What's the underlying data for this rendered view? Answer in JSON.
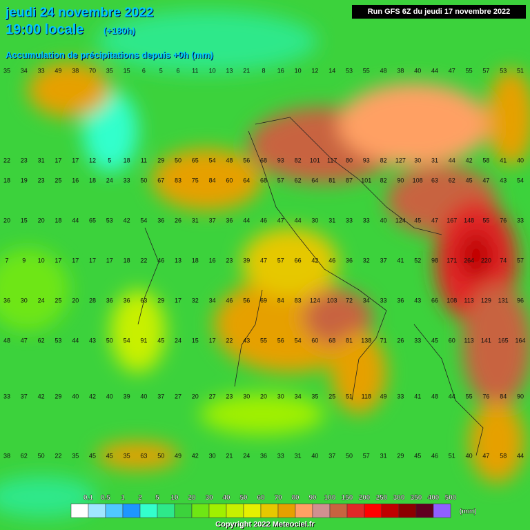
{
  "header": {
    "date": "jeudi 24 novembre 2022",
    "time": "19:00 locale",
    "lead": "(+180h)",
    "subtitle": "Accumulation de précipitations depuis +0h (mm)",
    "run": "Run GFS 6Z du jeudi 17 novembre 2022"
  },
  "legend": {
    "unit": "(mm)",
    "items": [
      {
        "label": "0.1",
        "color": "#ffffff"
      },
      {
        "label": "0.5",
        "color": "#a0e6ff"
      },
      {
        "label": "1",
        "color": "#50c8ff"
      },
      {
        "label": "2",
        "color": "#1e96ff"
      },
      {
        "label": "5",
        "color": "#33ffcc"
      },
      {
        "label": "10",
        "color": "#2ee88a"
      },
      {
        "label": "20",
        "color": "#3cd23c"
      },
      {
        "label": "30",
        "color": "#6ee614"
      },
      {
        "label": "40",
        "color": "#a0f000"
      },
      {
        "label": "50",
        "color": "#c8f000"
      },
      {
        "label": "60",
        "color": "#e6f000"
      },
      {
        "label": "70",
        "color": "#e6c800"
      },
      {
        "label": "80",
        "color": "#e6a000"
      },
      {
        "label": "90",
        "color": "#ffa064"
      },
      {
        "label": "100",
        "color": "#d09090"
      },
      {
        "label": "150",
        "color": "#c86440"
      },
      {
        "label": "200",
        "color": "#e02828"
      },
      {
        "label": "250",
        "color": "#ff0000"
      },
      {
        "label": "300",
        "color": "#c00000"
      },
      {
        "label": "350",
        "color": "#8c0000"
      },
      {
        "label": "400",
        "color": "#600020"
      },
      {
        "label": "500",
        "color": "#9060ff"
      }
    ]
  },
  "grid": {
    "rows": [
      [
        "35",
        "34",
        "33",
        "49",
        "38",
        "70",
        "35",
        "15",
        "6",
        "5",
        "6",
        "11",
        "10",
        "13",
        "21",
        "8",
        "16",
        "10",
        "12",
        "14",
        "53",
        "55",
        "48",
        "38",
        "40",
        "44",
        "47",
        "55",
        "57",
        "53",
        "51"
      ],
      [
        "22",
        "23",
        "31",
        "17",
        "17",
        "12",
        "5",
        "18",
        "11",
        "29",
        "50",
        "65",
        "54",
        "48",
        "56",
        "68",
        "93",
        "82",
        "101",
        "117",
        "80",
        "93",
        "82",
        "127",
        "30",
        "31",
        "44",
        "42",
        "58",
        "41",
        "40"
      ],
      [
        "18",
        "19",
        "23",
        "25",
        "16",
        "18",
        "24",
        "33",
        "50",
        "67",
        "83",
        "75",
        "84",
        "60",
        "64",
        "68",
        "57",
        "62",
        "64",
        "81",
        "87",
        "101",
        "82",
        "90",
        "108",
        "63",
        "62",
        "45",
        "47",
        "43",
        "54"
      ],
      [
        "20",
        "15",
        "20",
        "18",
        "44",
        "65",
        "53",
        "42",
        "54",
        "36",
        "26",
        "31",
        "37",
        "36",
        "44",
        "46",
        "47",
        "44",
        "30",
        "31",
        "33",
        "33",
        "40",
        "124",
        "45",
        "47",
        "167",
        "148",
        "55",
        "76",
        "33"
      ],
      [
        "7",
        "9",
        "10",
        "17",
        "17",
        "17",
        "17",
        "18",
        "22",
        "46",
        "13",
        "18",
        "16",
        "23",
        "39",
        "47",
        "57",
        "66",
        "42",
        "46",
        "36",
        "32",
        "37",
        "41",
        "52",
        "98",
        "171",
        "264",
        "220",
        "74",
        "57"
      ],
      [
        "36",
        "30",
        "24",
        "25",
        "20",
        "28",
        "36",
        "36",
        "63",
        "29",
        "17",
        "32",
        "34",
        "46",
        "56",
        "69",
        "84",
        "83",
        "124",
        "103",
        "72",
        "34",
        "33",
        "36",
        "43",
        "66",
        "108",
        "113",
        "129",
        "131",
        "96"
      ],
      [
        "48",
        "47",
        "62",
        "53",
        "44",
        "43",
        "50",
        "54",
        "91",
        "45",
        "24",
        "15",
        "17",
        "22",
        "43",
        "55",
        "56",
        "54",
        "60",
        "68",
        "81",
        "138",
        "71",
        "26",
        "33",
        "45",
        "60",
        "113",
        "141",
        "165",
        "164"
      ],
      [
        "33",
        "37",
        "42",
        "29",
        "40",
        "42",
        "40",
        "39",
        "40",
        "37",
        "27",
        "20",
        "27",
        "23",
        "30",
        "20",
        "30",
        "34",
        "35",
        "25",
        "51",
        "118",
        "49",
        "33",
        "41",
        "48",
        "44",
        "55",
        "76",
        "84",
        "90"
      ],
      [
        "38",
        "62",
        "50",
        "22",
        "35",
        "45",
        "45",
        "35",
        "63",
        "50",
        "49",
        "42",
        "30",
        "21",
        "24",
        "36",
        "33",
        "31",
        "40",
        "37",
        "50",
        "57",
        "31",
        "29",
        "45",
        "46",
        "51",
        "40",
        "47",
        "58",
        "44"
      ]
    ]
  },
  "footer": {
    "copyright": "Copyright 2022 Meteociel.fr"
  }
}
